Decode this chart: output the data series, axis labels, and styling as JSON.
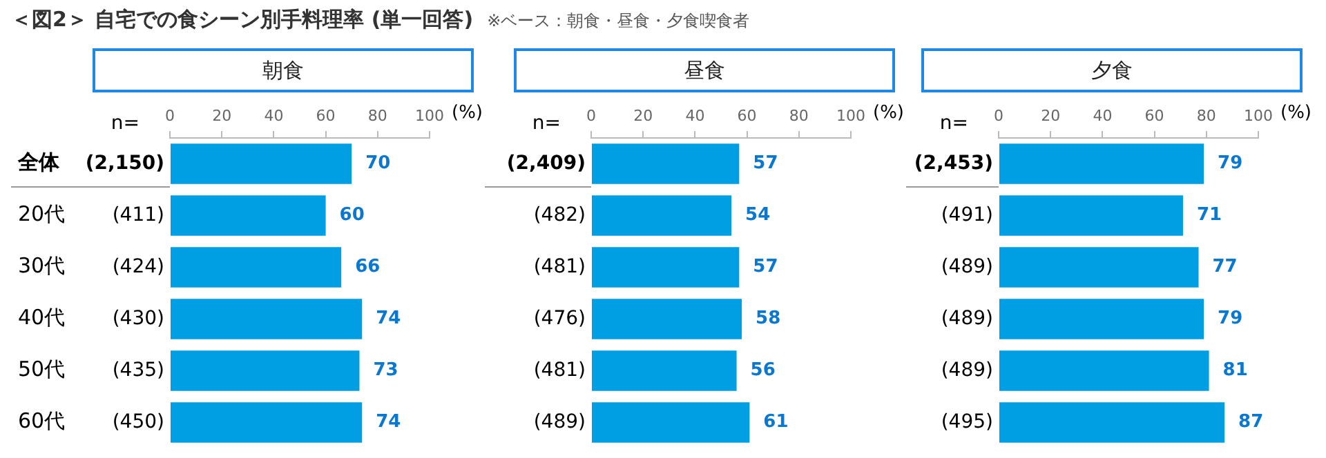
{
  "chart_data": [
    {
      "type": "other",
      "title": "＜図2＞ 自宅での食シーン別手料理率 (単一回答)",
      "subtitle": "※ベース：朝食・昼食・夕食喫食者"
    },
    {
      "type": "bar",
      "orientation": "horizontal",
      "title": "朝食",
      "xlabel": "(%)",
      "ylabel": "n=",
      "categories": [
        "全体",
        "20代",
        "30代",
        "40代",
        "50代",
        "60代"
      ],
      "values": [
        70,
        60,
        66,
        74,
        73,
        74
      ],
      "color": "#009fe3",
      "xlim": [
        0,
        100
      ],
      "xticks": [
        0,
        20,
        40,
        60,
        80,
        100
      ],
      "data_labels": true,
      "annotations": [
        "(2,150)",
        "(411)",
        "(424)",
        "(430)",
        "(435)",
        "(450)"
      ]
    },
    {
      "type": "bar",
      "orientation": "horizontal",
      "title": "昼食",
      "xlabel": "(%)",
      "ylabel": "n=",
      "categories": [
        null,
        null,
        null,
        null,
        null,
        null
      ],
      "values": [
        57,
        54,
        57,
        58,
        56,
        61
      ],
      "color": "#009fe3",
      "xlim": [
        0,
        100
      ],
      "xticks": [
        0,
        20,
        40,
        60,
        80,
        100
      ],
      "data_labels": true,
      "annotations": [
        "(2,409)",
        "(482)",
        "(481)",
        "(476)",
        "(481)",
        "(489)"
      ]
    },
    {
      "type": "bar",
      "orientation": "horizontal",
      "title": "夕食",
      "xlabel": "(%)",
      "ylabel": "n=",
      "categories": [
        null,
        null,
        null,
        null,
        null,
        null
      ],
      "values": [
        79,
        71,
        77,
        79,
        81,
        87
      ],
      "color": "#009fe3",
      "xlim": [
        0,
        100
      ],
      "xticks": [
        0,
        20,
        40,
        60,
        80,
        100
      ],
      "data_labels": true,
      "annotations": [
        "(2,453)",
        "(491)",
        "(489)",
        "(489)",
        "(489)",
        "(495)"
      ]
    }
  ]
}
